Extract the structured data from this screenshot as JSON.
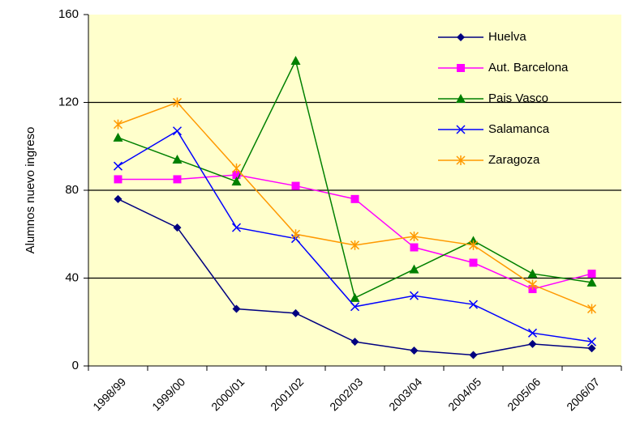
{
  "chart_data": {
    "type": "line",
    "y_label": "Alumnos nuevo ingreso",
    "categories": [
      "1998/99",
      "1999/00",
      "2000/01",
      "2001/02",
      "2002/03",
      "2003/04",
      "2004/05",
      "2005/06",
      "2006/07"
    ],
    "series": [
      {
        "name": "Huelva",
        "color": "#000080",
        "marker": "diamond",
        "values": [
          76,
          63,
          26,
          24,
          11,
          7,
          5,
          10,
          8
        ]
      },
      {
        "name": "Aut. Barcelona",
        "color": "#ff00ff",
        "marker": "square",
        "values": [
          85,
          85,
          87,
          82,
          76,
          54,
          47,
          35,
          42
        ]
      },
      {
        "name": "Pais Vasco",
        "color": "#008000",
        "marker": "triangle",
        "values": [
          104,
          94,
          84,
          139,
          31,
          44,
          57,
          42,
          38
        ]
      },
      {
        "name": "Salamanca",
        "color": "#0000ff",
        "marker": "x",
        "values": [
          91,
          107,
          63,
          58,
          27,
          32,
          28,
          15,
          11
        ]
      },
      {
        "name": "Zaragoza",
        "color": "#ff9900",
        "marker": "asterisk",
        "values": [
          110,
          120,
          90,
          60,
          55,
          59,
          55,
          37,
          26
        ]
      }
    ],
    "ylim": [
      0,
      160
    ],
    "yticks": [
      0,
      40,
      80,
      120,
      160
    ],
    "grid": true,
    "legend": "upper right"
  }
}
